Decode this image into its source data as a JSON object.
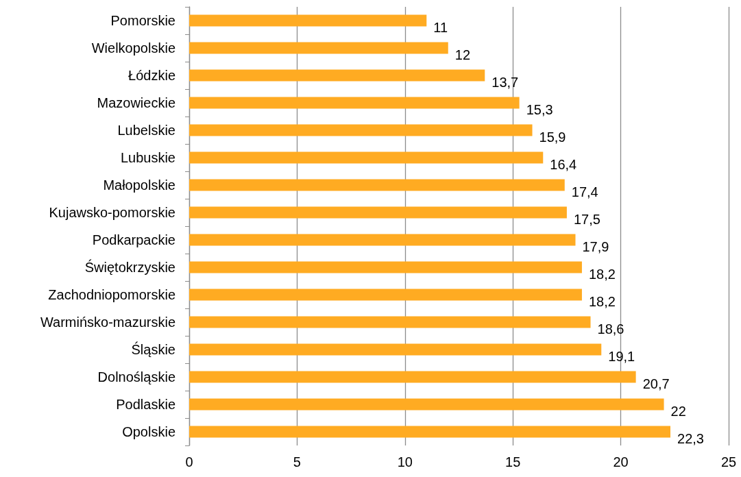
{
  "chart_data": {
    "type": "bar",
    "orientation": "horizontal",
    "categories": [
      "Pomorskie",
      "Wielkopolskie",
      "Łódzkie",
      "Mazowieckie",
      "Lubelskie",
      "Lubuskie",
      "Małopolskie",
      "Kujawsko-pomorskie",
      "Podkarpackie",
      "Świętokrzyskie",
      "Zachodniopomorskie",
      "Warmińsko-mazurskie",
      "Śląskie",
      "Dolnośląskie",
      "Podlaskie",
      "Opolskie"
    ],
    "values": [
      11,
      12,
      13.7,
      15.3,
      15.9,
      16.4,
      17.4,
      17.5,
      17.9,
      18.2,
      18.2,
      18.6,
      19.1,
      20.7,
      22,
      22.3
    ],
    "value_labels": [
      "11",
      "12",
      "13,7",
      "15,3",
      "15,9",
      "16,4",
      "17,4",
      "17,5",
      "17,9",
      "18,2",
      "18,2",
      "18,6",
      "19,1",
      "20,7",
      "22",
      "22,3"
    ],
    "color": "#ffab22",
    "xlim": [
      0,
      25
    ],
    "xticks": [
      0,
      5,
      10,
      15,
      20,
      25
    ],
    "grid": "x"
  }
}
